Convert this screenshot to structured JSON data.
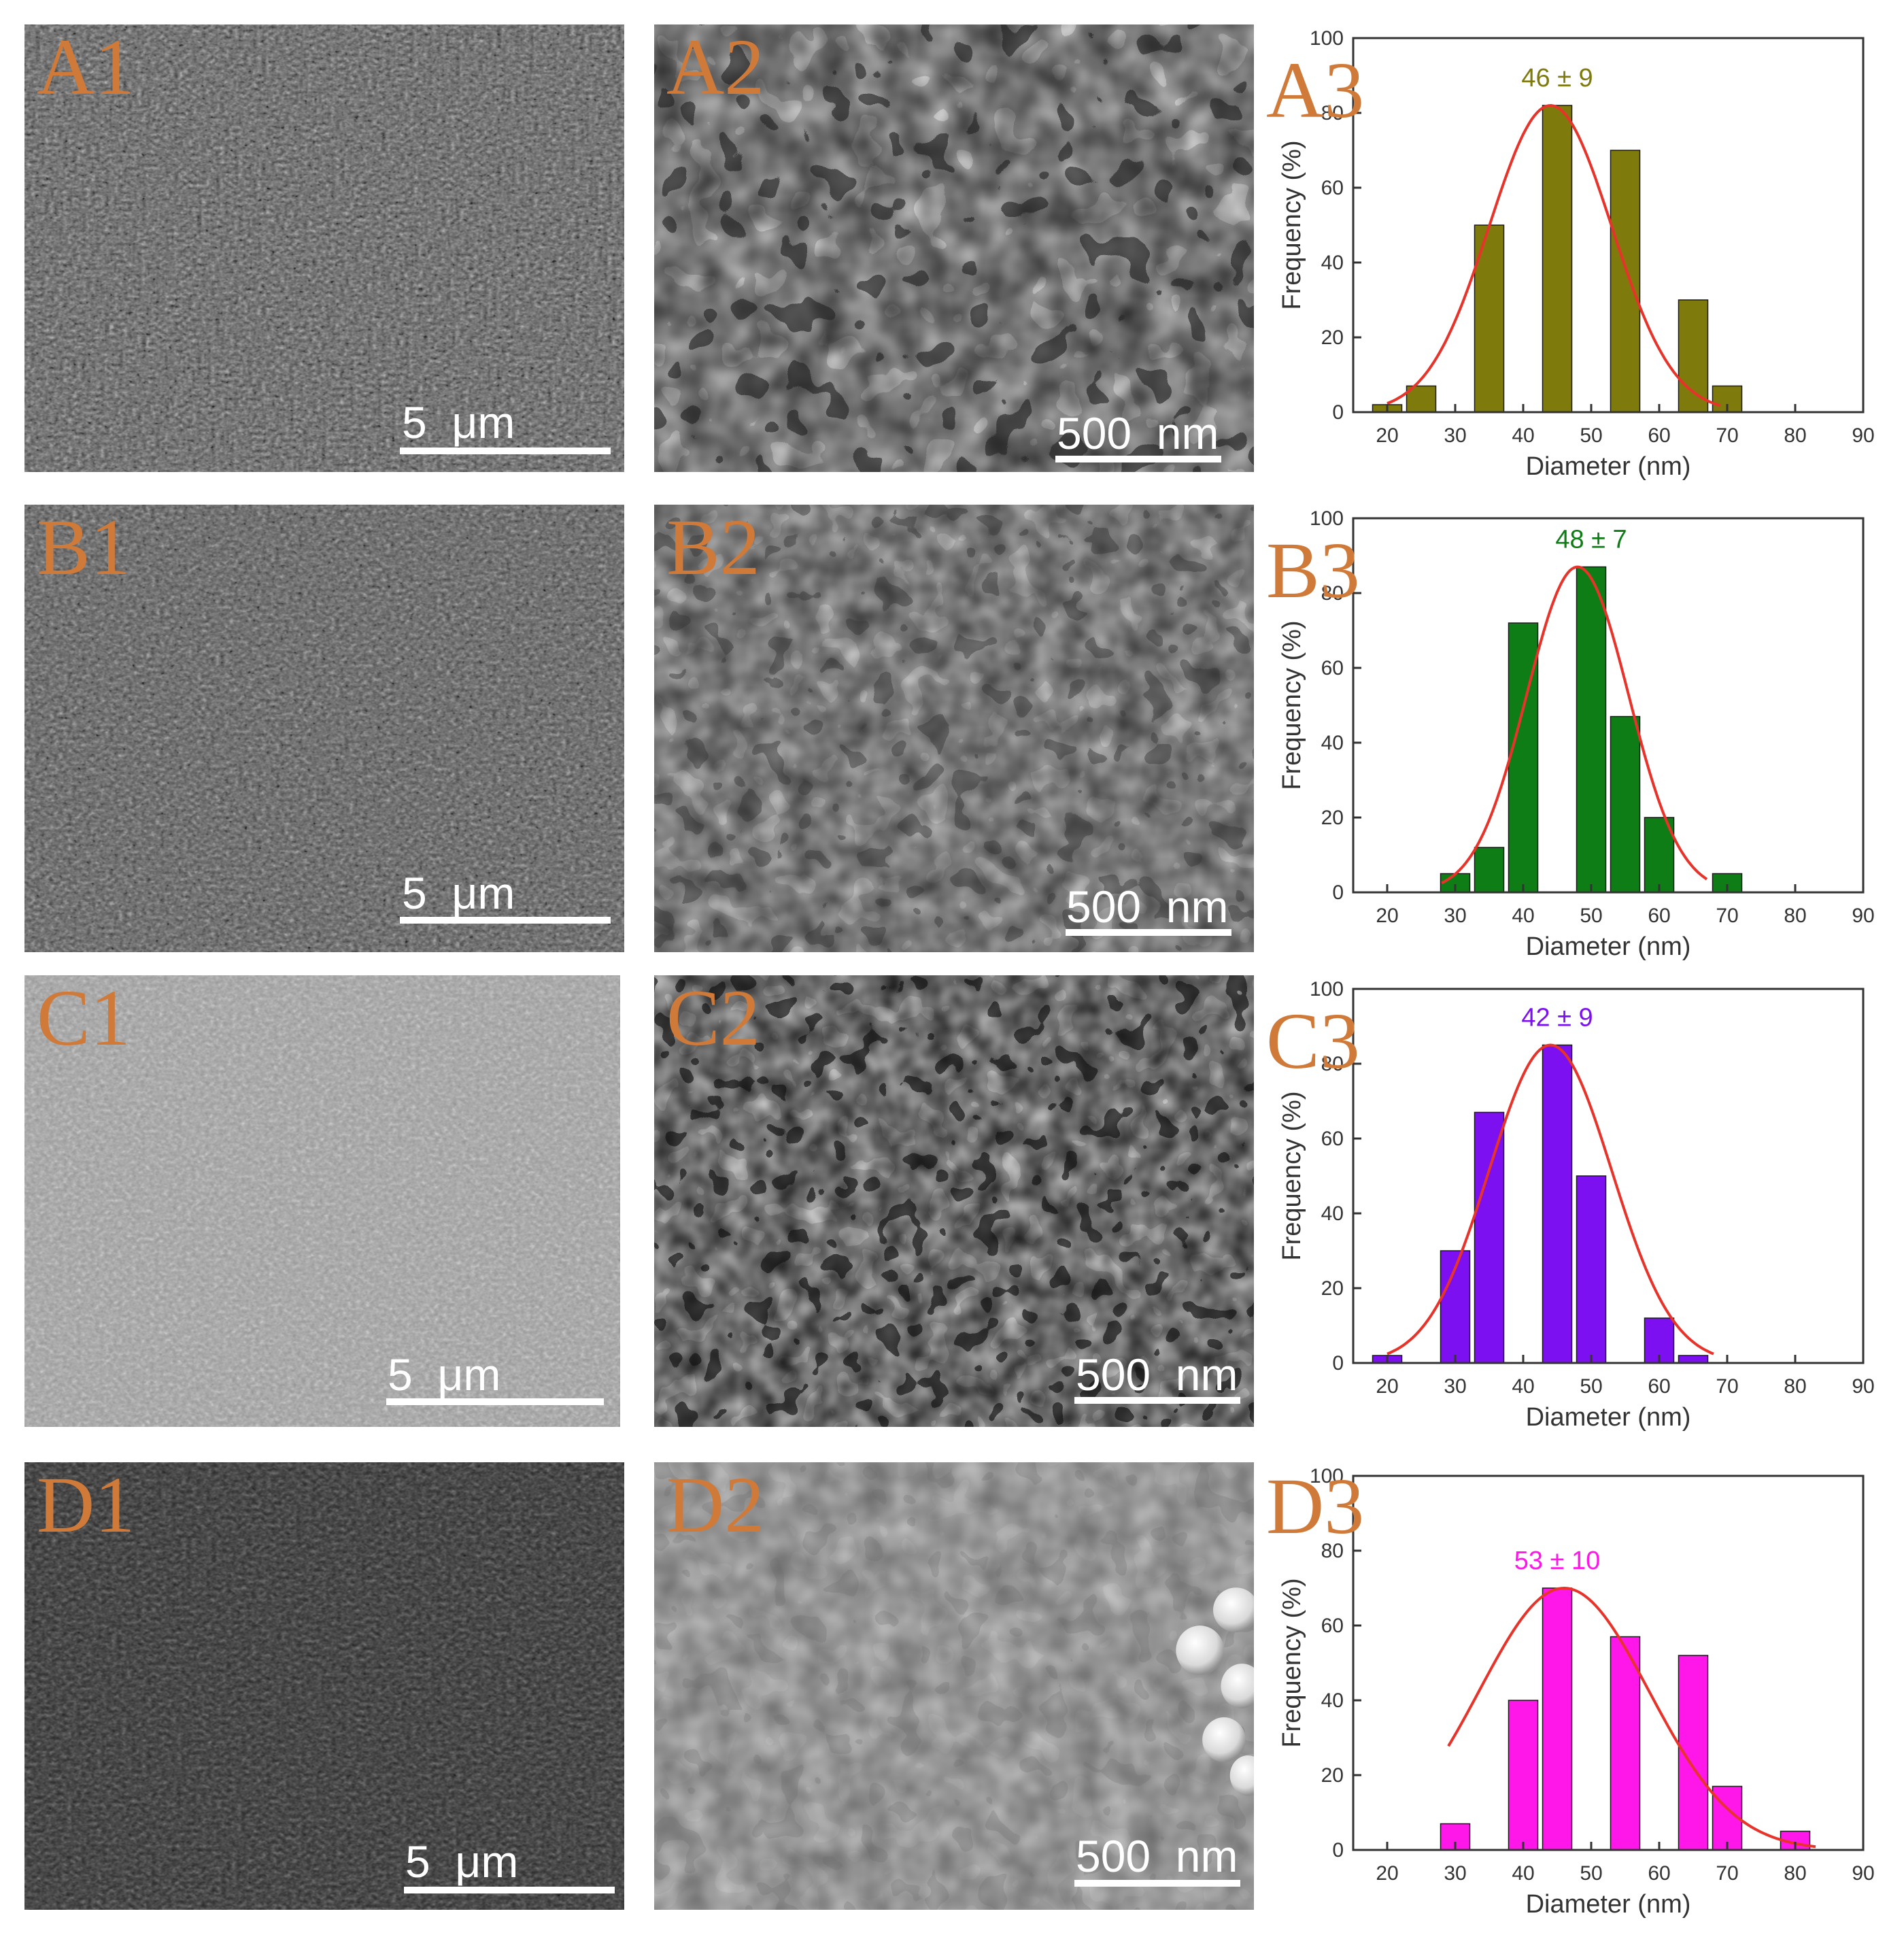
{
  "panels": [
    {
      "label": "A1",
      "scale": "5  μm"
    },
    {
      "label": "A2",
      "scale": "500  nm"
    },
    {
      "label": "A3"
    },
    {
      "label": "B1",
      "scale": "5  μm"
    },
    {
      "label": "B2",
      "scale": "500  nm"
    },
    {
      "label": "B3"
    },
    {
      "label": "C1",
      "scale": "5  μm"
    },
    {
      "label": "C2",
      "scale": "500  nm"
    },
    {
      "label": "C3"
    },
    {
      "label": "D1",
      "scale": "5  μm"
    },
    {
      "label": "D2",
      "scale": "500  nm"
    },
    {
      "label": "D3"
    }
  ],
  "chart_data": [
    {
      "type": "bar",
      "panel": "A3",
      "xlabel": "Diameter (nm)",
      "ylabel": "Frequency (%)",
      "xlim": [
        15,
        90
      ],
      "ylim": [
        0,
        100
      ],
      "xticks": [
        20,
        30,
        40,
        50,
        60,
        70,
        80,
        90
      ],
      "yticks": [
        0,
        20,
        40,
        60,
        80,
        100
      ],
      "x": [
        20,
        25,
        35,
        45,
        55,
        65,
        70
      ],
      "values": [
        2,
        7,
        50,
        82,
        70,
        30,
        7
      ],
      "annotation": "46 ± 9",
      "bar_color": "#7f7a0c",
      "annotation_color": "#7f7a0c",
      "fit_color": "#e8332a",
      "fit": {
        "mean": 44,
        "sigma": 9,
        "peak": 82,
        "from": 20,
        "to": 69
      }
    },
    {
      "type": "bar",
      "panel": "B3",
      "xlabel": "Diameter (nm)",
      "ylabel": "Frequency (%)",
      "xlim": [
        15,
        90
      ],
      "ylim": [
        0,
        100
      ],
      "xticks": [
        20,
        30,
        40,
        50,
        60,
        70,
        80,
        90
      ],
      "yticks": [
        0,
        20,
        40,
        60,
        80,
        100
      ],
      "x": [
        30,
        35,
        40,
        50,
        55,
        60,
        70
      ],
      "values": [
        5,
        12,
        72,
        87,
        47,
        20,
        5
      ],
      "annotation": "48 ± 7",
      "bar_color": "#0e7d16",
      "annotation_color": "#0e7d16",
      "fit_color": "#e8332a",
      "fit": {
        "mean": 48,
        "sigma": 7.5,
        "peak": 87,
        "from": 28,
        "to": 67
      }
    },
    {
      "type": "bar",
      "panel": "C3",
      "xlabel": "Diameter (nm)",
      "ylabel": "Frequency (%)",
      "xlim": [
        15,
        90
      ],
      "ylim": [
        0,
        100
      ],
      "xticks": [
        20,
        30,
        40,
        50,
        60,
        70,
        80,
        90
      ],
      "yticks": [
        0,
        20,
        40,
        60,
        80,
        100
      ],
      "x": [
        20,
        30,
        35,
        45,
        50,
        60,
        65
      ],
      "values": [
        2,
        30,
        67,
        85,
        50,
        12,
        2
      ],
      "annotation": "42 ± 9",
      "bar_color": "#7d10f0",
      "annotation_color": "#7d10f0",
      "fit_color": "#e8332a",
      "fit": {
        "mean": 44,
        "sigma": 9,
        "peak": 85,
        "from": 20,
        "to": 68
      }
    },
    {
      "type": "bar",
      "panel": "D3",
      "xlabel": "Diameter (nm)",
      "ylabel": "Frequency (%)",
      "xlim": [
        15,
        90
      ],
      "ylim": [
        0,
        100
      ],
      "xticks": [
        20,
        30,
        40,
        50,
        60,
        70,
        80,
        90
      ],
      "yticks": [
        0,
        20,
        40,
        60,
        80,
        100
      ],
      "x": [
        30,
        40,
        45,
        55,
        65,
        70,
        80
      ],
      "values": [
        7,
        40,
        70,
        57,
        52,
        17,
        5
      ],
      "annotation": "53 ± 10",
      "bar_color": "#ff17e9",
      "annotation_color": "#ff17e9",
      "fit_color": "#e8332a",
      "fit": {
        "mean": 46,
        "sigma": 12.5,
        "peak": 70,
        "from": 29,
        "to": 83
      }
    }
  ]
}
